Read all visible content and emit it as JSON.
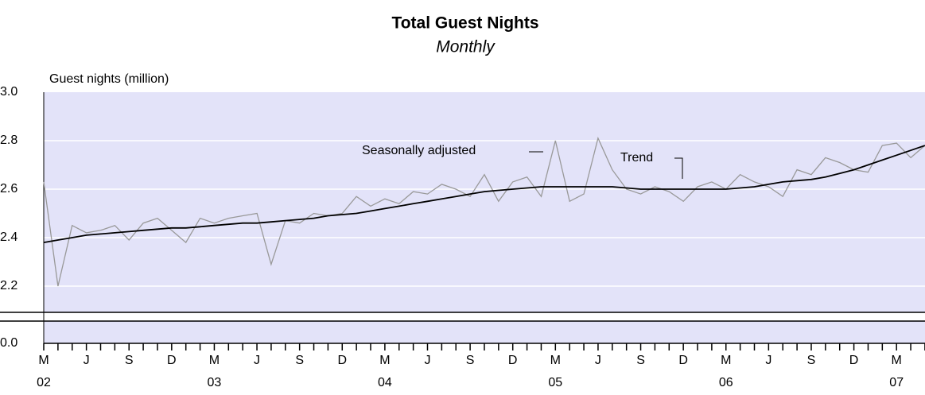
{
  "chart_data": {
    "type": "line",
    "title": "Total Guest Nights",
    "subtitle": "Monthly",
    "y_label": "Guest nights (million)",
    "categories": [
      "M",
      null,
      null,
      "J",
      null,
      null,
      "S",
      null,
      null,
      "D",
      null,
      null,
      "M",
      null,
      null,
      "J",
      null,
      null,
      "S",
      null,
      null,
      "D",
      null,
      null,
      "M",
      null,
      null,
      "J",
      null,
      null,
      "S",
      null,
      null,
      "D",
      null,
      null,
      "M",
      null,
      null,
      "J",
      null,
      null,
      "S",
      null,
      null,
      "D",
      null,
      null,
      "M",
      null,
      null,
      "J",
      null,
      null,
      "S",
      null,
      null,
      "D",
      null,
      null,
      "M",
      null,
      null
    ],
    "years": [
      "02",
      null,
      null,
      null,
      null,
      null,
      null,
      null,
      null,
      null,
      null,
      null,
      "03",
      null,
      null,
      null,
      null,
      null,
      null,
      null,
      null,
      null,
      null,
      null,
      "04",
      null,
      null,
      null,
      null,
      null,
      null,
      null,
      null,
      null,
      null,
      null,
      "05",
      null,
      null,
      null,
      null,
      null,
      null,
      null,
      null,
      null,
      null,
      null,
      "06",
      null,
      null,
      null,
      null,
      null,
      null,
      null,
      null,
      null,
      null,
      null,
      "07",
      null,
      null
    ],
    "series": [
      {
        "name": "Seasonally adjusted",
        "color": "#999999",
        "values": [
          2.63,
          2.2,
          2.45,
          2.42,
          2.43,
          2.45,
          2.39,
          2.46,
          2.48,
          2.43,
          2.38,
          2.48,
          2.46,
          2.48,
          2.49,
          2.5,
          2.29,
          2.47,
          2.46,
          2.5,
          2.49,
          2.5,
          2.57,
          2.53,
          2.56,
          2.54,
          2.59,
          2.58,
          2.62,
          2.6,
          2.57,
          2.66,
          2.55,
          2.63,
          2.65,
          2.57,
          2.8,
          2.55,
          2.58,
          2.81,
          2.68,
          2.6,
          2.58,
          2.61,
          2.59,
          2.55,
          2.61,
          2.63,
          2.6,
          2.66,
          2.63,
          2.61,
          2.57,
          2.68,
          2.66,
          2.73,
          2.71,
          2.68,
          2.67,
          2.78,
          2.79,
          2.73,
          2.78
        ]
      },
      {
        "name": "Trend",
        "color": "#000000",
        "values": [
          2.38,
          2.39,
          2.4,
          2.41,
          2.415,
          2.42,
          2.425,
          2.43,
          2.435,
          2.44,
          2.44,
          2.445,
          2.45,
          2.455,
          2.46,
          2.46,
          2.465,
          2.47,
          2.475,
          2.48,
          2.49,
          2.495,
          2.5,
          2.51,
          2.52,
          2.53,
          2.54,
          2.55,
          2.56,
          2.57,
          2.58,
          2.59,
          2.595,
          2.6,
          2.605,
          2.61,
          2.61,
          2.61,
          2.61,
          2.61,
          2.61,
          2.605,
          2.6,
          2.6,
          2.6,
          2.6,
          2.6,
          2.6,
          2.6,
          2.605,
          2.61,
          2.62,
          2.63,
          2.635,
          2.64,
          2.65,
          2.665,
          2.68,
          2.7,
          2.72,
          2.74,
          2.76,
          2.78
        ]
      }
    ],
    "annotations": [
      "Seasonally adjusted",
      "Trend"
    ],
    "ylim": [
      2.1,
      3.0
    ],
    "y_break": true,
    "yticks": [
      {
        "value": 0,
        "label": "0.0"
      },
      2.2,
      2.4,
      2.6,
      2.8,
      {
        "value": 3,
        "label": "3.0"
      }
    ],
    "grid": true,
    "background": "#e3e3f9"
  }
}
